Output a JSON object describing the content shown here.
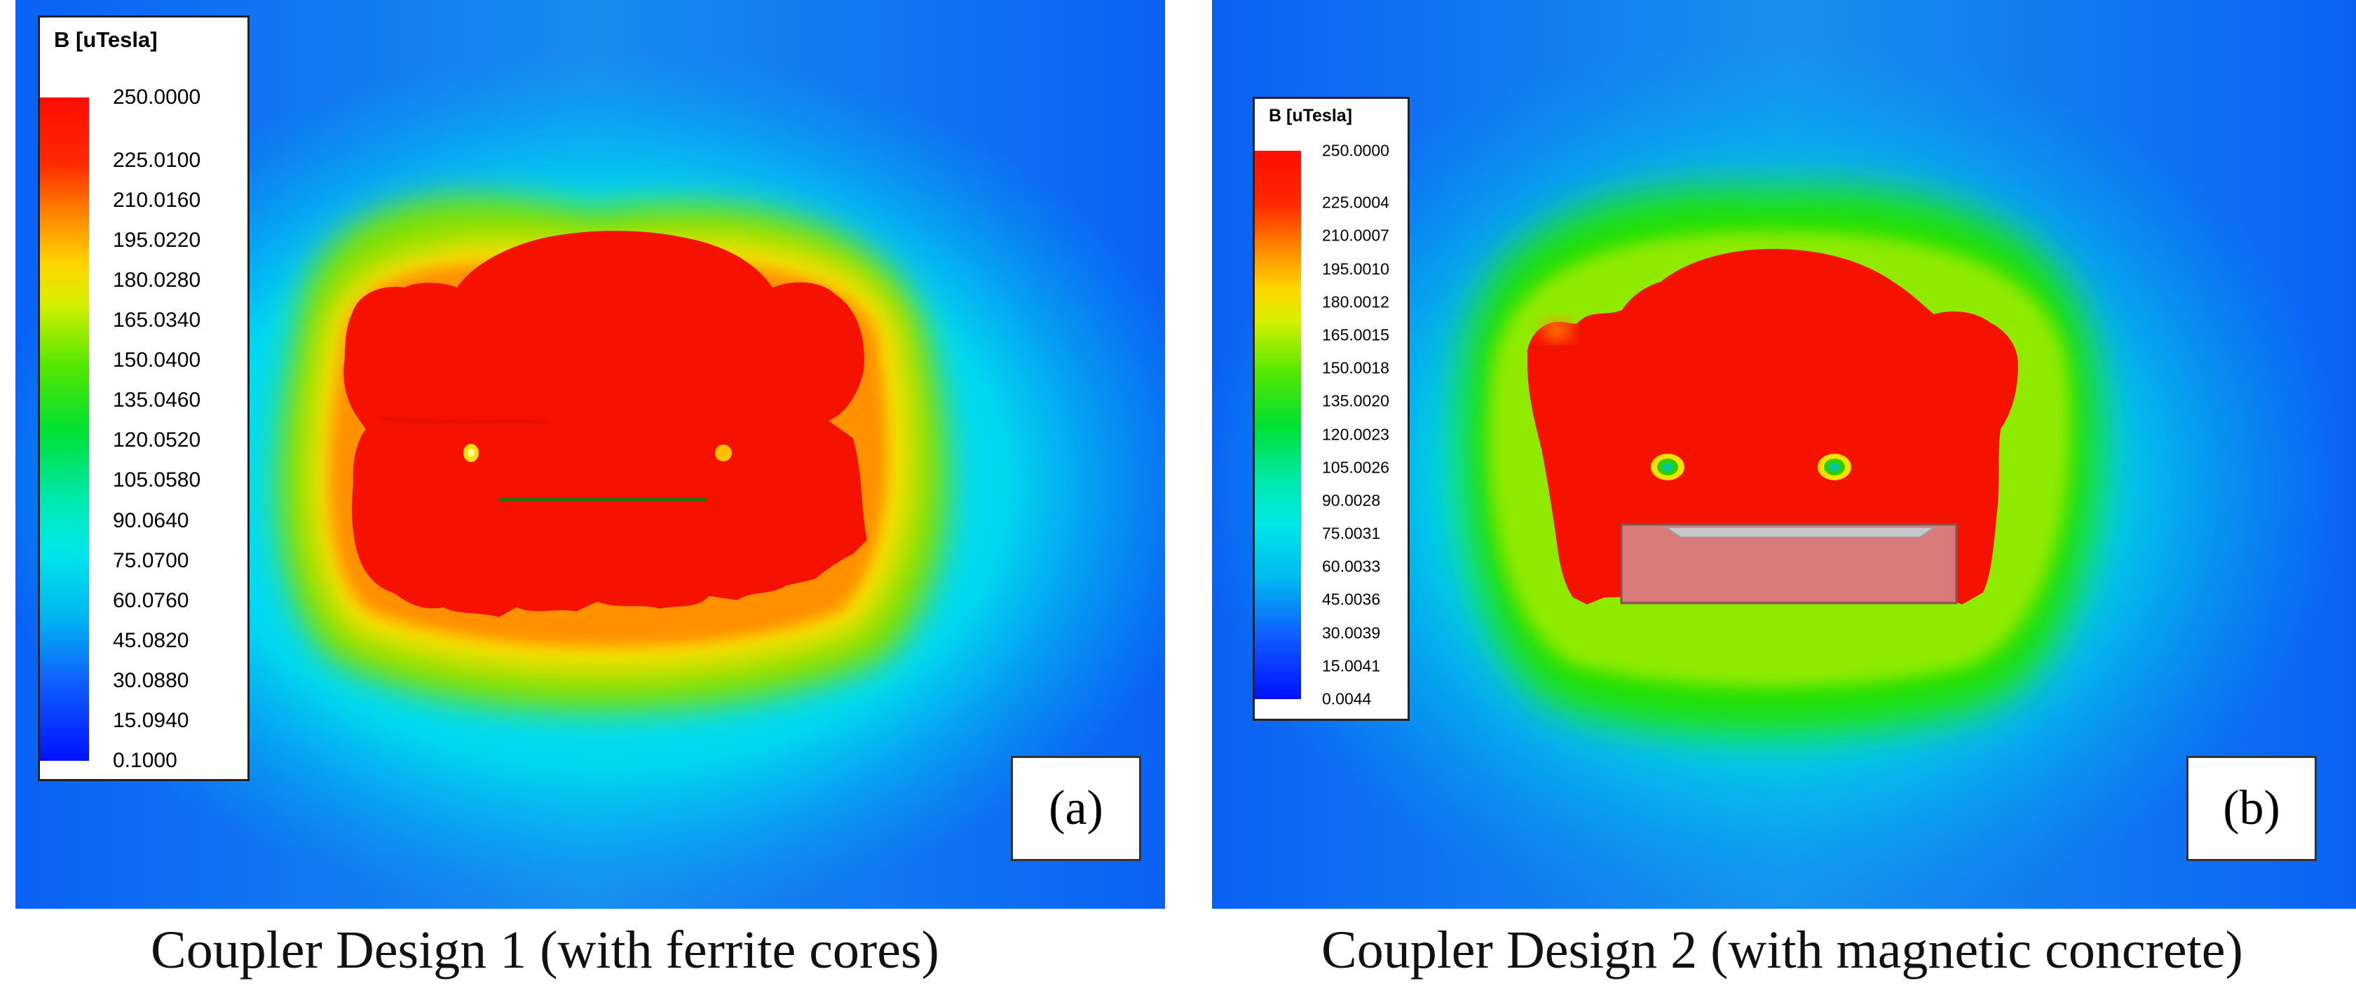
{
  "figures": [
    {
      "id": "a",
      "label": "(a)",
      "caption": "Coupler Design 1 (with ferrite cores)",
      "legend": {
        "title": "B [uTesla]",
        "ticks": [
          "250.0000",
          "225.0100",
          "210.0160",
          "195.0220",
          "180.0280",
          "165.0340",
          "150.0400",
          "135.0460",
          "120.0520",
          "105.0580",
          "90.0640",
          "75.0700",
          "60.0760",
          "45.0820",
          "30.0880",
          "15.0940",
          "0.1000"
        ]
      }
    },
    {
      "id": "b",
      "label": "(b)",
      "caption": "Coupler Design 2 (with magnetic concrete)",
      "legend": {
        "title": "B [uTesla]",
        "ticks": [
          "250.0000",
          "225.0004",
          "210.0007",
          "195.0010",
          "180.0012",
          "165.0015",
          "150.0018",
          "135.0020",
          "120.0023",
          "105.0026",
          "90.0028",
          "75.0031",
          "60.0033",
          "45.0036",
          "30.0039",
          "15.0041",
          "0.0044"
        ]
      }
    }
  ],
  "colors": {
    "high": "#ff1a00",
    "orange": "#ff8c00",
    "yellow": "#ffe800",
    "green": "#1fe000",
    "cyan": "#00e8f0",
    "blue": "#0a2cff",
    "concrete_block": "#d87a7a"
  }
}
